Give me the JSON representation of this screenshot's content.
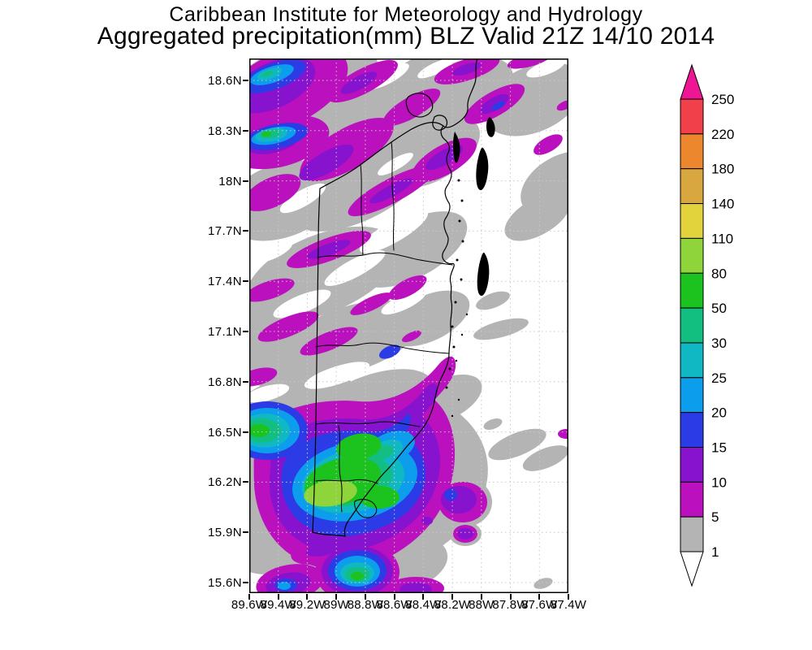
{
  "header": {
    "line1": "Caribbean Institute for Meteorology and Hydrology",
    "line2": "Aggregated precipitation(mm) BLZ Valid 21Z 14/10 2014"
  },
  "axes": {
    "lat_labels": [
      "18.6N",
      "18.3N",
      "18N",
      "17.7N",
      "17.4N",
      "17.1N",
      "16.8N",
      "16.5N",
      "16.2N",
      "15.9N",
      "15.6N"
    ],
    "lon_labels": [
      "89.6W",
      "89.4W",
      "89.2W",
      "89W",
      "88.8W",
      "88.6W",
      "88.4W",
      "88.2W",
      "88W",
      "87.8W",
      "87.6W",
      "87.4W"
    ]
  },
  "colorbar": {
    "values_top_to_bottom": [
      "250",
      "220",
      "180",
      "140",
      "110",
      "80",
      "50",
      "30",
      "25",
      "20",
      "15",
      "10",
      "5",
      "1"
    ],
    "segment_colors_top_to_bottom": [
      "#f2404a",
      "#ec872e",
      "#d8a73f",
      "#e2d33d",
      "#8ed43a",
      "#1cc21e",
      "#13bf80",
      "#10b8c4",
      "#0d9ded",
      "#2b3be6",
      "#8813cf",
      "#bb10bd",
      "#b4b4b4"
    ],
    "top_arrow_color": "#ee1694",
    "bottom_arrow_color": "#ffffff"
  },
  "chart_data": {
    "type": "filled-contour precipitation map",
    "title": "Caribbean Institute for Meteorology and Hydrology",
    "subtitle": "Aggregated precipitation(mm) BLZ Valid 21Z 14/10 2014",
    "region": "Belize (BLZ) and western Caribbean",
    "units": "mm",
    "valid_time": "21Z 14/10 2014",
    "lat_range": [
      "15.6N",
      "18.6N"
    ],
    "lon_range": [
      "89.6W",
      "87.4W"
    ],
    "lat_tick_step_deg": 0.3,
    "lon_tick_step_deg": 0.2,
    "grid": "dashed graticule at tick spacing",
    "legend_position": "right vertical colorbar with arrowheads",
    "contour_levels_mm": [
      1,
      5,
      10,
      15,
      20,
      25,
      30,
      50,
      80,
      110,
      140,
      180,
      220,
      250
    ],
    "level_colors": {
      "1-5": "#b4b4b4",
      "5-10": "#bb10bd",
      "10-15": "#8813cf",
      "15-20": "#2b3be6",
      "20-25": "#0d9ded",
      "25-30": "#10b8c4",
      "30-50": "#13bf80",
      "50-80": "#1cc21e",
      "80-110": "#8ed43a",
      "110-140": "#e2d33d",
      "140-180": "#d8a73f",
      "180-220": "#ec872e",
      "220-250": "#f2404a",
      "over_250": "#ee1694"
    },
    "notable_features": [
      "Broad NE-SW oriented bands of 1-10 mm (gray/magenta) across northwest half of domain",
      "Small 15-25 mm cores (blue/cyan) near 18.6N-18.3N 89.5W",
      "Large rainfall maximum over southern Belize near 16.1N 88.9W with 80-110 mm core (yellow-green) surrounded by 50-80 mm green and concentric 30/25/20/15/10/5 mm rings",
      "Secondary 10-15 mm cells east of the coast near 16.1N 88.2W and along the bottom edge",
      "Mostly dry (<1 mm, white) open Caribbean in the east with scattered 1-5 mm gray streaks"
    ]
  }
}
